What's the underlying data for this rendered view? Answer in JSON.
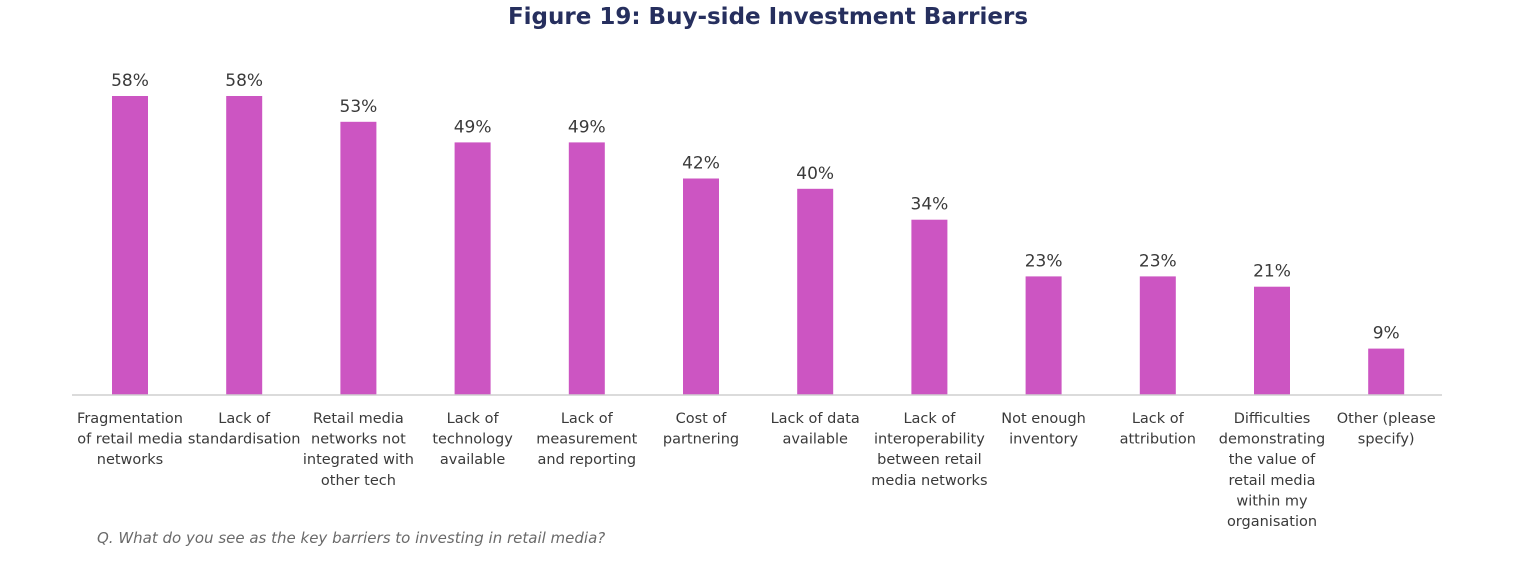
{
  "chart_data": {
    "type": "bar",
    "title": "Figure 19: Buy-side Investment Barriers",
    "xlabel": "",
    "ylabel": "",
    "ylim": [
      0,
      60
    ],
    "value_suffix": "%",
    "categories": [
      [
        "Fragmentation",
        "of retail media",
        "networks"
      ],
      [
        "Lack of",
        "standardisation"
      ],
      [
        "Retail media",
        "networks not",
        "integrated with",
        "other tech"
      ],
      [
        "Lack of",
        "technology",
        "available"
      ],
      [
        "Lack of",
        "measurement",
        "and reporting"
      ],
      [
        "Cost of",
        "partnering"
      ],
      [
        "Lack of data",
        "available"
      ],
      [
        "Lack of",
        "interoperability",
        "between retail",
        "media networks"
      ],
      [
        "Not enough",
        "inventory"
      ],
      [
        "Lack of",
        "attribution"
      ],
      [
        "Difficulties",
        "demonstrating",
        "the value of",
        "retail media",
        "within my",
        "organisation"
      ],
      [
        "Other (please",
        "specify)"
      ]
    ],
    "values": [
      58,
      58,
      53,
      49,
      49,
      42,
      40,
      34,
      23,
      23,
      21,
      9
    ],
    "bar_color": "#cc55c2",
    "title_color": "#262f5e",
    "axis_color": "#cfcfcf"
  },
  "footer": {
    "question": "Q. What do you see as the key barriers to investing in retail media?"
  }
}
